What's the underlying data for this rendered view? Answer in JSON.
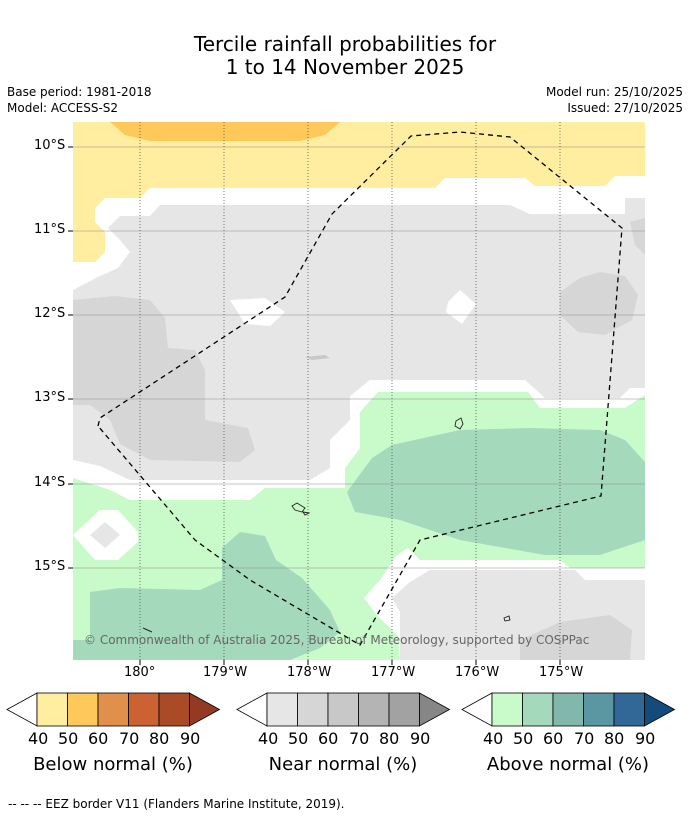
{
  "title": {
    "line1": "Tercile rainfall probabilities for",
    "line2": "1 to 14 November 2025"
  },
  "meta": {
    "base_period": "Base period: 1981-2018",
    "model": "Model: ACCESS-S2",
    "model_run": "Model run: 25/10/2025",
    "issued": "Issued: 27/10/2025"
  },
  "axes": {
    "lat_labels": [
      "10°S",
      "11°S",
      "12°S",
      "13°S",
      "14°S",
      "15°S"
    ],
    "lon_labels": [
      "180°",
      "179°W",
      "178°W",
      "177°W",
      "176°W",
      "175°W"
    ]
  },
  "copyright": "© Commonwealth of Australia 2025, Bureau of Meteorology, supported by COSPPac",
  "colorbars": [
    {
      "title": "Below normal (%)",
      "ticks": [
        "40",
        "50",
        "60",
        "70",
        "80",
        "90"
      ],
      "colors": [
        "#ffeda0",
        "#fec85a",
        "#e0904a",
        "#cc6232",
        "#ab4a26",
        "#943a24"
      ]
    },
    {
      "title": "Near normal (%)",
      "ticks": [
        "40",
        "50",
        "60",
        "70",
        "80",
        "90"
      ],
      "colors": [
        "#e6e6e6",
        "#d6d6d6",
        "#c8c8c8",
        "#b4b4b4",
        "#a2a2a2",
        "#868686"
      ]
    },
    {
      "title": "Above normal (%)",
      "ticks": [
        "40",
        "50",
        "60",
        "70",
        "80",
        "90"
      ],
      "colors": [
        "#c8fbc9",
        "#a4d9bc",
        "#82b8ac",
        "#5b97a2",
        "#316898",
        "#144b7c"
      ]
    }
  ],
  "footnote": "--  --  -- EEZ border V11 (Flanders Marine Institute, 2019)."
}
